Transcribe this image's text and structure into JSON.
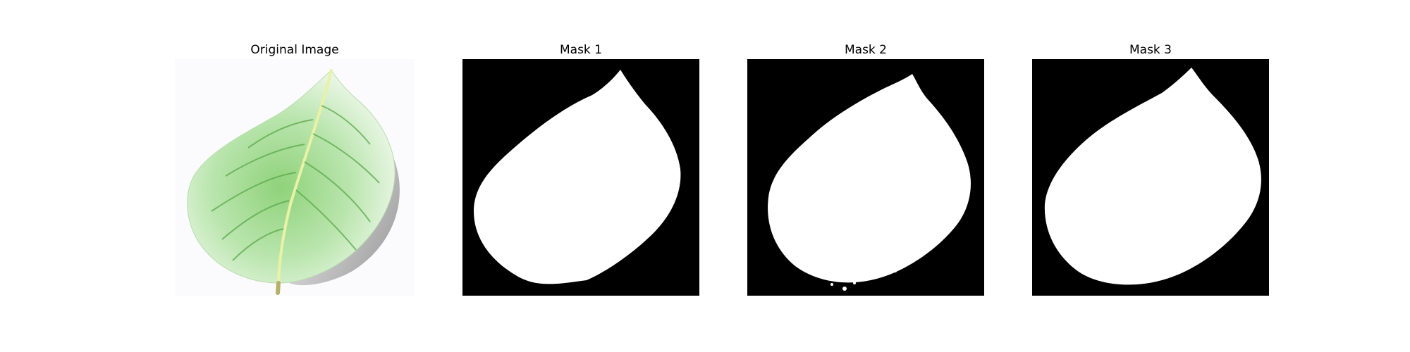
{
  "figure": {
    "panels": [
      {
        "title": "Original Image",
        "kind": "photo",
        "subject": "leaf"
      },
      {
        "title": "Mask 1",
        "kind": "mask"
      },
      {
        "title": "Mask 2",
        "kind": "mask"
      },
      {
        "title": "Mask 3",
        "kind": "mask"
      }
    ]
  },
  "colors": {
    "background": "#ffffff",
    "mask_background": "#000000",
    "mask_foreground": "#ffffff",
    "leaf_light": "#d9f0d2",
    "leaf_mid": "#8fd27a",
    "leaf_dark": "#3f9a38",
    "shadow": "#7a7a7a"
  }
}
